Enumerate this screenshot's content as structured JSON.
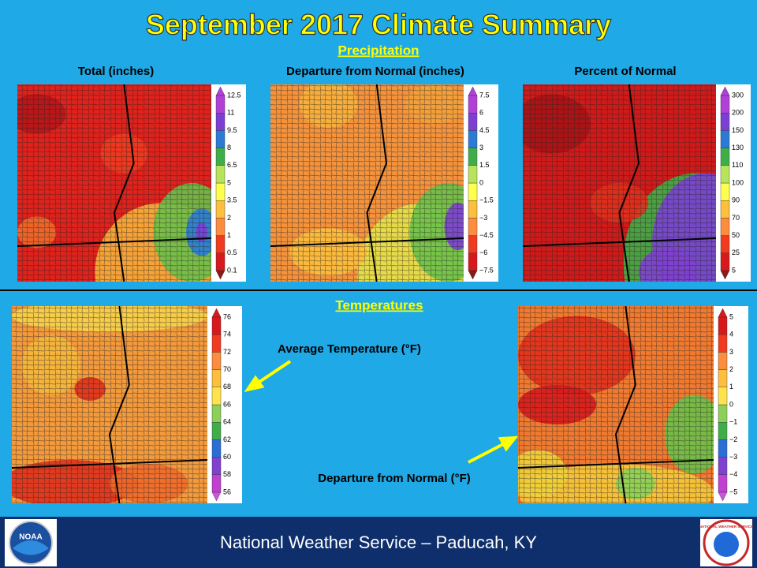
{
  "header": {
    "title": "September 2017 Climate Summary"
  },
  "precipitation": {
    "heading": "Precipitation",
    "panels": [
      {
        "title": "Total (inches)",
        "scale": [
          "12.5",
          "11",
          "9.5",
          "8",
          "6.5",
          "5",
          "3.5",
          "2",
          "1",
          "0.5",
          "0.1"
        ]
      },
      {
        "title": "Departure  from Normal (inches)",
        "scale": [
          "7.5",
          "6",
          "4.5",
          "3",
          "1.5",
          "0",
          "−1.5",
          "−3",
          "−4.5",
          "−6",
          "−7.5"
        ]
      },
      {
        "title": "Percent of Normal",
        "scale": [
          "300",
          "200",
          "150",
          "130",
          "110",
          "100",
          "90",
          "70",
          "50",
          "25",
          "5"
        ]
      }
    ]
  },
  "temperatures": {
    "heading": "Temperatures",
    "panels": [
      {
        "label": "Average Temperature (°F)",
        "scale": [
          "76",
          "74",
          "72",
          "70",
          "68",
          "66",
          "64",
          "62",
          "60",
          "58",
          "56"
        ]
      },
      {
        "label": "Departure  from Normal (°F)",
        "scale": [
          "5",
          "4",
          "3",
          "2",
          "1",
          "0",
          "−1",
          "−2",
          "−3",
          "−4",
          "−5"
        ]
      }
    ]
  },
  "footer": {
    "text": "National Weather Service – Paducah, KY"
  },
  "logos": {
    "left": "NOAA",
    "right": "NATIONAL WEATHER SERVICE"
  }
}
